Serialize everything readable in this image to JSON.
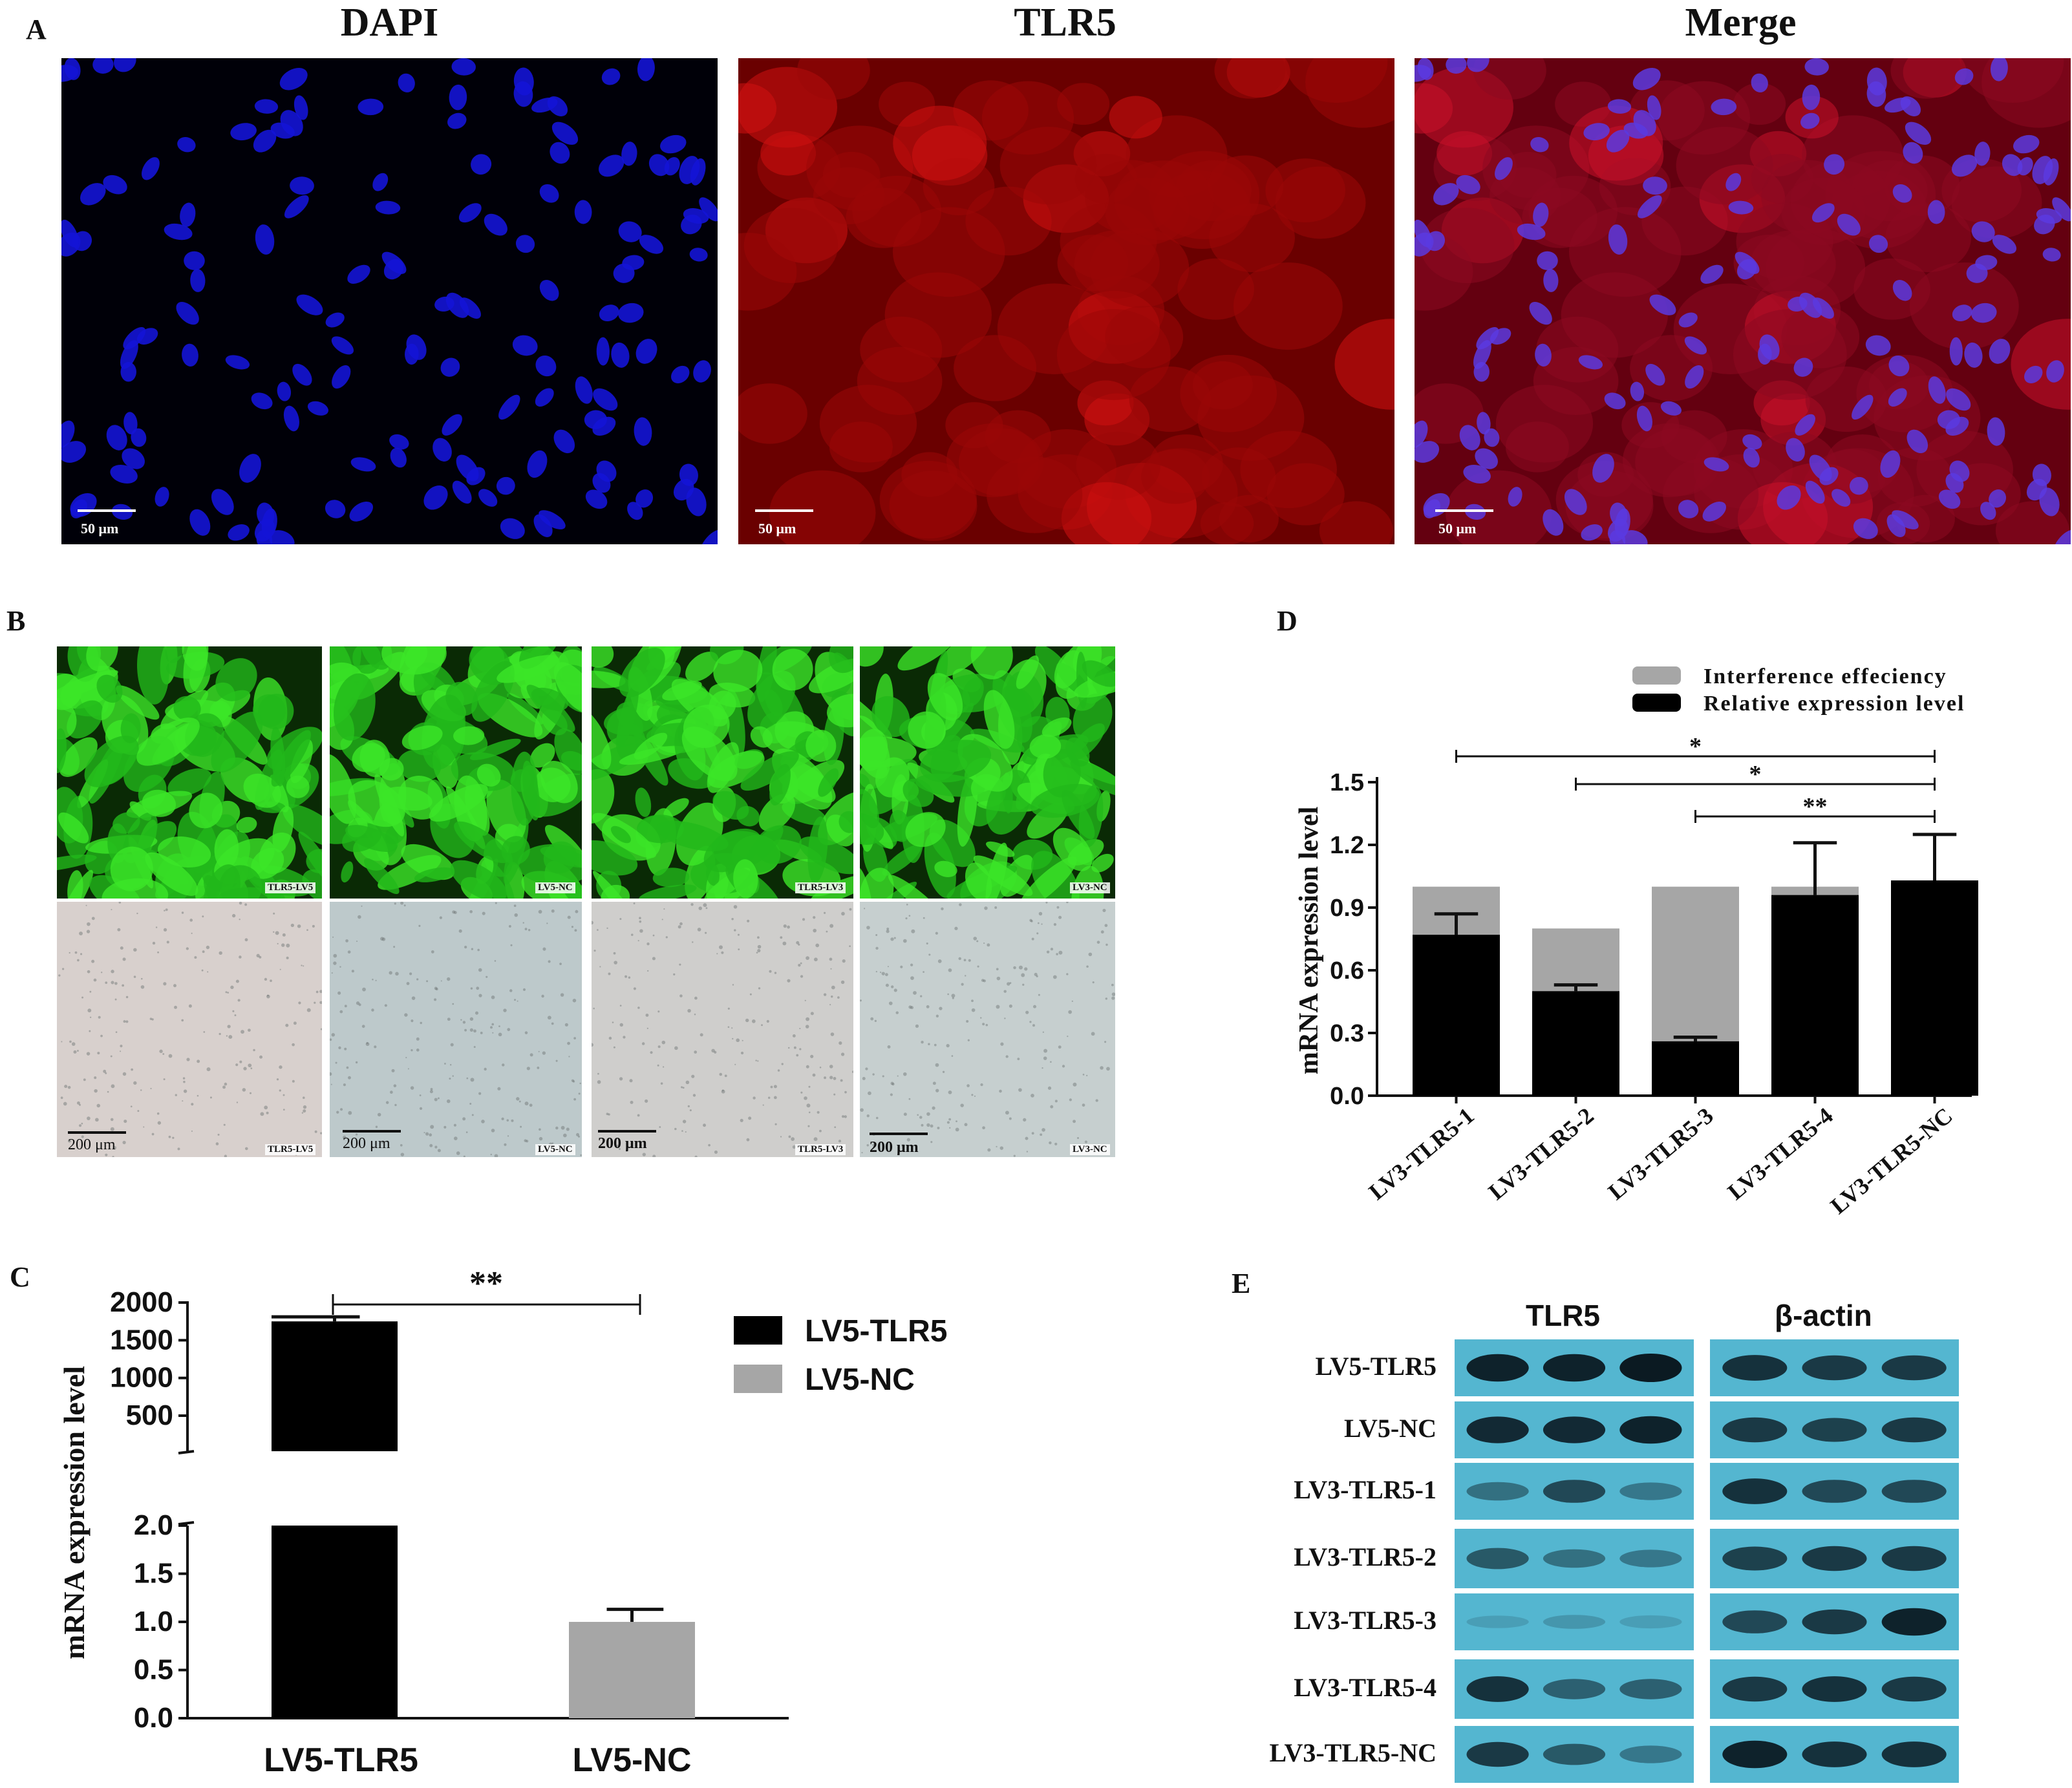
{
  "panelA": {
    "label": "A",
    "titles": [
      "DAPI",
      "TLR5",
      "Merge"
    ],
    "scale_text": "50 μm"
  },
  "panelB": {
    "label": "B",
    "tags": [
      "TLR5-LV5",
      "LV5-NC",
      "TLR5-LV3",
      "LV3-NC"
    ],
    "scale_text": "200 μm"
  },
  "panelC": {
    "label": "C",
    "legend": [
      "LV5-TLR5",
      "LV5-NC"
    ],
    "significance": "**",
    "colors": {
      "LV5-TLR5": "#000000",
      "LV5-NC": "#a6a6a6"
    }
  },
  "panelD": {
    "label": "D",
    "legend": [
      "Interference effeciency",
      "Relative expression level"
    ],
    "colors": {
      "Interference effeciency": "#a6a6a6",
      "Relative expression level": "#000000"
    },
    "significance": [
      "*",
      "*",
      "**"
    ]
  },
  "panelE": {
    "label": "E",
    "headers": [
      "TLR5",
      "β-actin"
    ],
    "rows": [
      "LV5-TLR5",
      "LV5-NC",
      "LV3-TLR5-1",
      "LV3-TLR5-2",
      "LV3-TLR5-3",
      "LV3-TLR5-4",
      "LV3-TLR5-NC"
    ],
    "tlr5_band_intensity": [
      [
        0.95,
        0.95,
        1.0
      ],
      [
        0.9,
        0.9,
        0.95
      ],
      [
        0.45,
        0.7,
        0.4
      ],
      [
        0.6,
        0.45,
        0.4
      ],
      [
        0.12,
        0.2,
        0.15
      ],
      [
        0.85,
        0.55,
        0.55
      ],
      [
        0.8,
        0.6,
        0.4
      ]
    ],
    "actin_band_intensity": [
      [
        0.85,
        0.8,
        0.8
      ],
      [
        0.8,
        0.75,
        0.8
      ],
      [
        0.85,
        0.7,
        0.7
      ],
      [
        0.75,
        0.8,
        0.8
      ],
      [
        0.7,
        0.8,
        0.95
      ],
      [
        0.8,
        0.85,
        0.8
      ],
      [
        0.95,
        0.85,
        0.85
      ]
    ]
  },
  "chart_data": [
    {
      "type": "bar",
      "panel": "C",
      "categories": [
        "LV5-TLR5",
        "LV5-NC"
      ],
      "values": [
        1750,
        1.0
      ],
      "errors": [
        60,
        0.13
      ],
      "ylabel": "mRNA expression level",
      "axis_break": {
        "lower_range": [
          0,
          2.0
        ],
        "upper_range": [
          0,
          2000
        ]
      },
      "yticks_lower": [
        "0.0",
        "0.5",
        "1.0",
        "1.5",
        "2.0"
      ],
      "yticks_upper": [
        "500",
        "1000",
        "1500",
        "2000"
      ],
      "grid": false
    },
    {
      "type": "bar",
      "panel": "D",
      "categories": [
        "LV3-TLR5-1",
        "LV3-TLR5-2",
        "LV3-TLR5-3",
        "LV3-TLR5-4",
        "LV3-TLR5-NC"
      ],
      "series": [
        {
          "name": "Interference effeciency",
          "values": [
            1.0,
            0.8,
            1.0,
            1.0,
            0
          ]
        },
        {
          "name": "Relative expression level",
          "values": [
            0.77,
            0.5,
            0.26,
            0.96,
            1.03
          ],
          "errors": [
            0.1,
            0.03,
            0.02,
            0.25,
            0.22
          ]
        }
      ],
      "ylabel": "mRNA expression level",
      "ylim": [
        0,
        1.5
      ],
      "yticks": [
        "0.0",
        "0.3",
        "0.6",
        "0.9",
        "1.2",
        "1.5"
      ],
      "grid": false
    }
  ]
}
